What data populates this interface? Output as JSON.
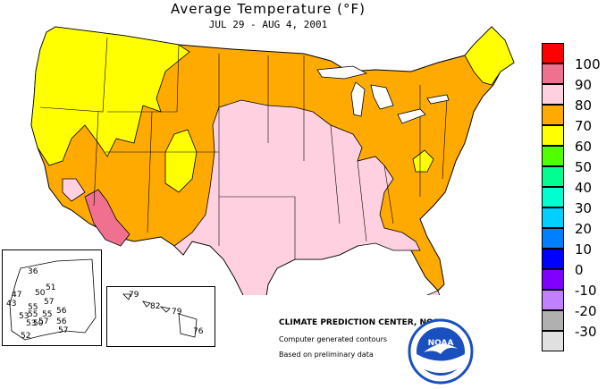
{
  "title": "Average Temperature (°F)",
  "subtitle": "JUL 29 - AUG  4, 2001",
  "legend": {
    "items": [
      {
        "label": "100",
        "color": "#ff0000"
      },
      {
        "label": "90",
        "color": "#f07090"
      },
      {
        "label": "80",
        "color": "#ffd0e0"
      },
      {
        "label": "70",
        "color": "#ffaa00"
      },
      {
        "label": "60",
        "color": "#ffff00"
      },
      {
        "label": "50",
        "color": "#50ff00"
      },
      {
        "label": "40",
        "color": "#00ff90"
      },
      {
        "label": "30",
        "color": "#00ffd0"
      },
      {
        "label": "20",
        "color": "#00d0ff"
      },
      {
        "label": "10",
        "color": "#0080ff"
      },
      {
        "label": "0",
        "color": "#0000ff"
      },
      {
        "label": "-10",
        "color": "#8000ff"
      },
      {
        "label": "-20",
        "color": "#c080ff"
      },
      {
        "label": "-30",
        "color": "#b0b0b0"
      },
      {
        "label": "",
        "color": "#e0e0e0"
      }
    ]
  },
  "credits": {
    "center": "CLIMATE PREDICTION CENTER, NOAA",
    "contours": "Computer generated contours",
    "data": "Based on preliminary data"
  },
  "logo_text": "NOAA",
  "alaska_stations": [
    "36",
    "51",
    "47",
    "50",
    "55",
    "57",
    "43",
    "53",
    "55",
    "56",
    "55",
    "57",
    "56",
    "53",
    "50",
    "52",
    "57"
  ],
  "hawaii_stations": [
    "79",
    "82",
    "79",
    "76"
  ]
}
